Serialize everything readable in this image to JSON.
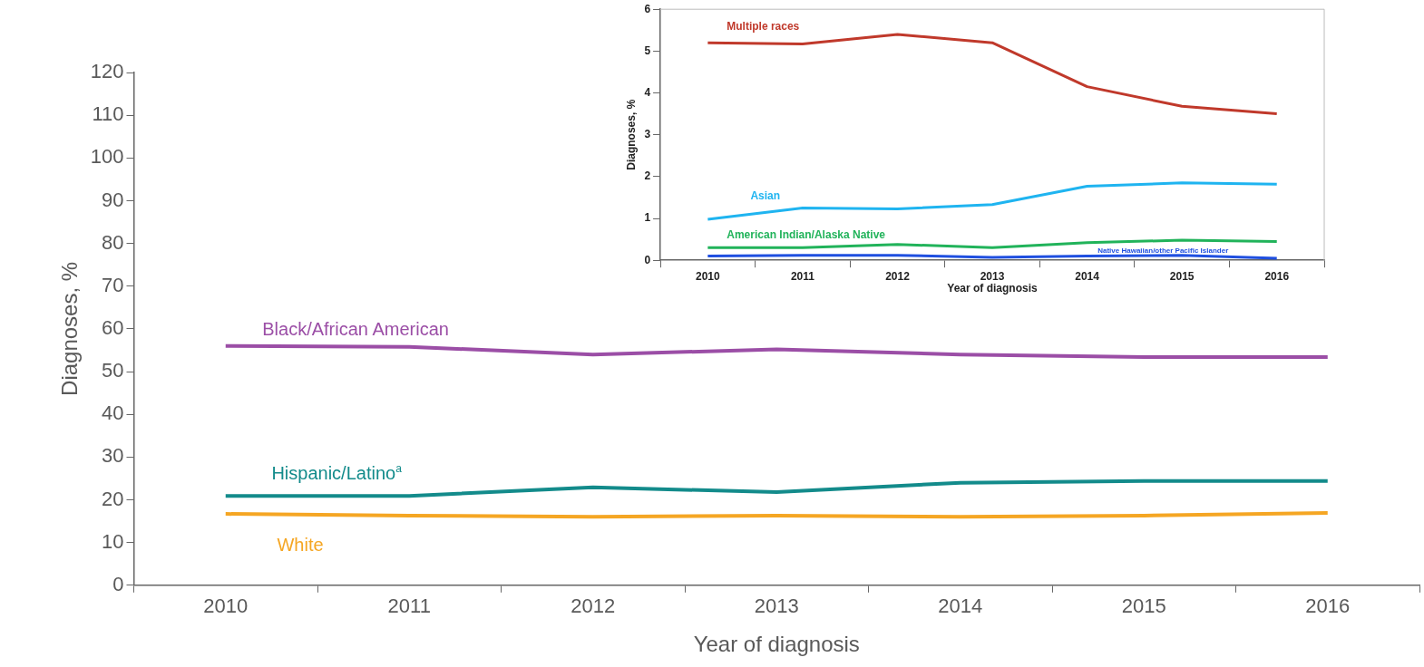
{
  "chart_data": [
    {
      "type": "line",
      "xlabel": "Year of diagnosis",
      "ylabel": "Diagnoses, %",
      "categories": [
        "2010",
        "2011",
        "2012",
        "2013",
        "2014",
        "2015",
        "2016"
      ],
      "ylim": [
        0,
        120
      ],
      "yticks": [
        0,
        10,
        20,
        30,
        40,
        50,
        60,
        70,
        80,
        90,
        100,
        110,
        120
      ],
      "grid": false,
      "legend": false,
      "marker": "none",
      "series": [
        {
          "name": "Black/African American",
          "color": "#9b4ea6",
          "values": [
            56,
            55.8,
            54,
            55.2,
            54,
            53.4,
            53.4
          ]
        },
        {
          "name": "Hispanic/Latino$^{a}$",
          "color": "#138b8b",
          "values": [
            20.9,
            20.9,
            22.9,
            21.8,
            24,
            24.4,
            24.4
          ]
        },
        {
          "name": "White",
          "color": "#f5a623",
          "values": [
            16.7,
            16.3,
            16,
            16.3,
            16,
            16.3,
            16.9
          ]
        }
      ]
    },
    {
      "type": "line",
      "xlabel": "Year of diagnosis",
      "ylabel": "Diagnoses, %",
      "categories": [
        "2010",
        "2011",
        "2012",
        "2013",
        "2014",
        "2015",
        "2016"
      ],
      "ylim": [
        0,
        6
      ],
      "yticks": [
        0,
        1,
        2,
        3,
        4,
        5,
        6
      ],
      "grid": false,
      "legend": false,
      "marker": "none",
      "series": [
        {
          "name": "Multiple races",
          "color": "#c0392b",
          "values": [
            5.2,
            5.17,
            5.4,
            5.2,
            4.15,
            3.68,
            3.5
          ]
        },
        {
          "name": "Asian",
          "color": "#1fb4f0",
          "values": [
            0.98,
            1.25,
            1.23,
            1.33,
            1.77,
            1.85,
            1.82
          ]
        },
        {
          "name": "American Indian/Alaska Native",
          "color": "#21b35a",
          "values": [
            0.3,
            0.3,
            0.38,
            0.3,
            0.42,
            0.48,
            0.45
          ]
        },
        {
          "name": "Native Hawaiian/other Pacific Islander",
          "color": "#1f4fe0",
          "values": [
            0.1,
            0.12,
            0.12,
            0.07,
            0.1,
            0.12,
            0.05
          ]
        }
      ]
    }
  ]
}
